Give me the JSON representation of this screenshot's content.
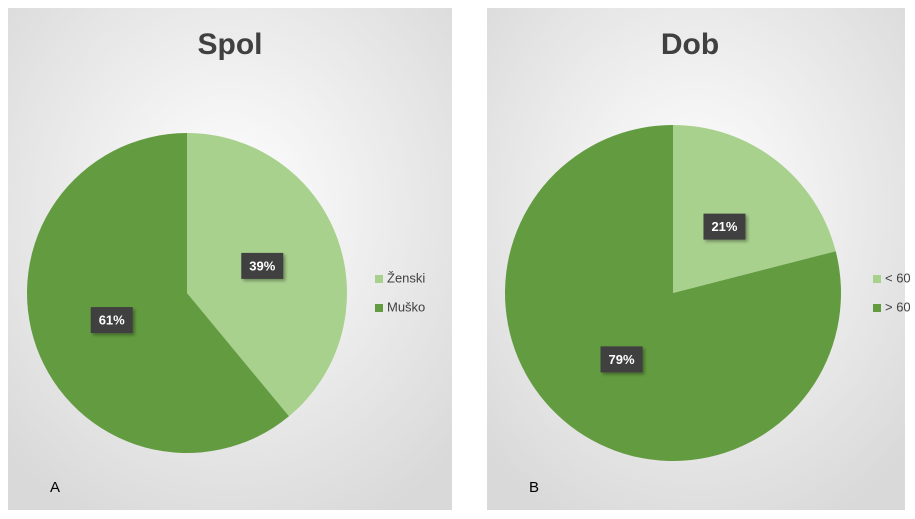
{
  "chart_data": [
    {
      "type": "pie",
      "title": "Spol",
      "panel_label": "A",
      "categories": [
        "Ženski",
        "Muško"
      ],
      "values": [
        39,
        61
      ],
      "value_labels": [
        "39%",
        "61%"
      ],
      "colors": [
        "#a9d18e",
        "#639c40"
      ],
      "legend": "right"
    },
    {
      "type": "pie",
      "title": "Dob",
      "panel_label": "B",
      "categories": [
        "< 60",
        "> 60"
      ],
      "values": [
        21,
        79
      ],
      "value_labels": [
        "21%",
        "79%"
      ],
      "colors": [
        "#a9d18e",
        "#639c40"
      ],
      "legend": "right"
    }
  ]
}
